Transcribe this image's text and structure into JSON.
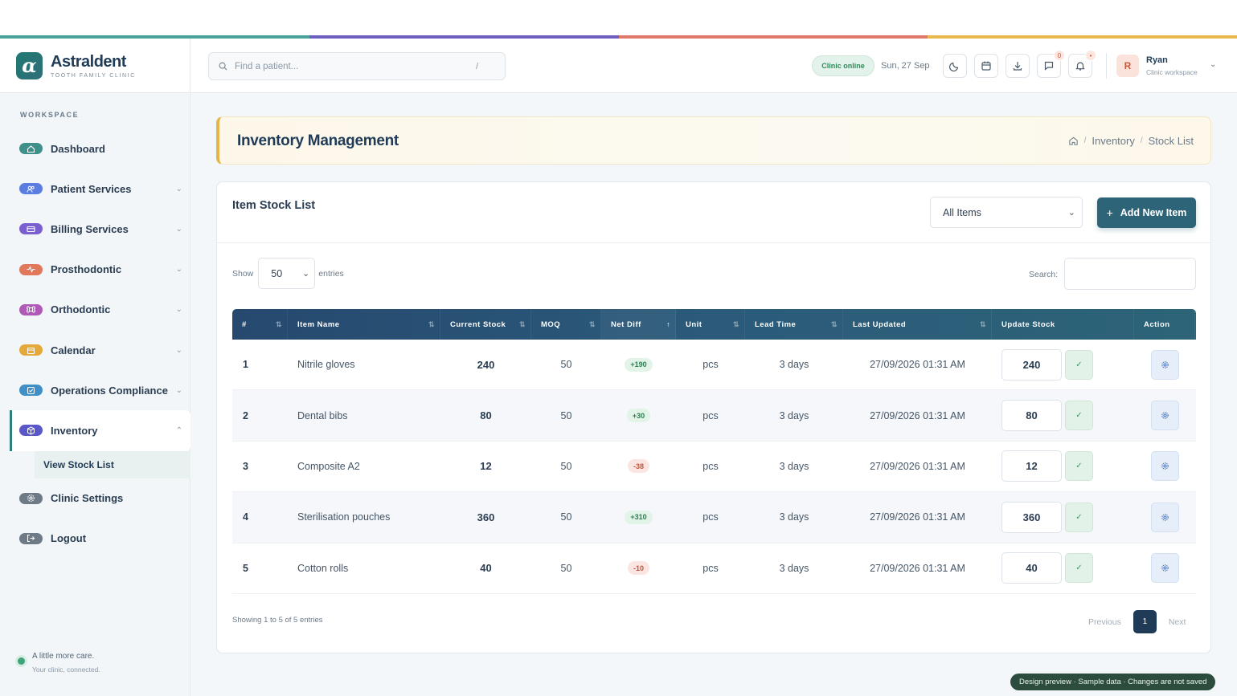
{
  "brand": {
    "name": "Astraldent",
    "tagline": "TOOTH FAMILY CLINIC",
    "logo_letter": "α"
  },
  "accent_colors": [
    "#4aa39a",
    "#6c5fc0",
    "#e0786a",
    "#e8b84a"
  ],
  "sidebar": {
    "section_label": "WORKSPACE",
    "items": [
      {
        "label": "Dashboard",
        "icon": "home-icon",
        "color": "#3f8f8a",
        "chevron": false
      },
      {
        "label": "Patient Services",
        "icon": "users-icon",
        "color": "#5b7de0",
        "chevron": true
      },
      {
        "label": "Billing Services",
        "icon": "card-icon",
        "color": "#7b5fd0",
        "chevron": true
      },
      {
        "label": "Prosthodontic",
        "icon": "pulse-icon",
        "color": "#e0785c",
        "chevron": true
      },
      {
        "label": "Orthodontic",
        "icon": "command-icon",
        "color": "#b05ab8",
        "chevron": true
      },
      {
        "label": "Calendar",
        "icon": "calendar-icon",
        "color": "#e3a93a",
        "chevron": true
      },
      {
        "label": "Operations Compliance",
        "icon": "checkbox-icon",
        "color": "#3f8fc8",
        "chevron": true
      },
      {
        "label": "Inventory",
        "icon": "box-icon",
        "color": "#5a58c8",
        "chevron": true,
        "expanded": true
      },
      {
        "label": "Clinic Settings",
        "icon": "gear-icon",
        "color": "#6e7a86",
        "chevron": false
      },
      {
        "label": "Logout",
        "icon": "logout-icon",
        "color": "#6e7a86",
        "chevron": false
      }
    ],
    "sub_item": "View Stock List",
    "footer": {
      "line1": "A little more care.",
      "line2": "Your clinic, connected."
    }
  },
  "header": {
    "search_placeholder": "Find a patient...",
    "search_shortcut": "/",
    "status": "Clinic online",
    "date": "Sun, 27 Sep",
    "chat_badge": "0",
    "notif_badge": "•",
    "user": {
      "initial": "R",
      "name": "Ryan",
      "role": "Clinic workspace"
    }
  },
  "page": {
    "title": "Inventory Management",
    "breadcrumbs": [
      "Inventory",
      "Stock List"
    ]
  },
  "card": {
    "title": "Item Stock List",
    "filter_value": "All Items",
    "add_button": "Add New Item",
    "show_label": "Show",
    "entries_value": "50",
    "entries_label": "entries",
    "search_label": "Search:",
    "columns": [
      "#",
      "Item Name",
      "Current Stock",
      "MOQ",
      "Net Diff",
      "Unit",
      "Lead Time",
      "Last Updated",
      "Update Stock",
      "Action"
    ],
    "rows": [
      {
        "num": "1",
        "name": "Nitrile gloves",
        "stock": "240",
        "moq": "50",
        "diff": "+190",
        "diff_positive": true,
        "unit": "pcs",
        "lead": "3 days",
        "updated": "27/09/2026 01:31 AM",
        "input": "240"
      },
      {
        "num": "2",
        "name": "Dental bibs",
        "stock": "80",
        "moq": "50",
        "diff": "+30",
        "diff_positive": true,
        "unit": "pcs",
        "lead": "3 days",
        "updated": "27/09/2026 01:31 AM",
        "input": "80"
      },
      {
        "num": "3",
        "name": "Composite A2",
        "stock": "12",
        "moq": "50",
        "diff": "-38",
        "diff_positive": false,
        "unit": "pcs",
        "lead": "3 days",
        "updated": "27/09/2026 01:31 AM",
        "input": "12"
      },
      {
        "num": "4",
        "name": "Sterilisation pouches",
        "stock": "360",
        "moq": "50",
        "diff": "+310",
        "diff_positive": true,
        "unit": "pcs",
        "lead": "3 days",
        "updated": "27/09/2026 01:31 AM",
        "input": "360"
      },
      {
        "num": "5",
        "name": "Cotton rolls",
        "stock": "40",
        "moq": "50",
        "diff": "-10",
        "diff_positive": false,
        "unit": "pcs",
        "lead": "3 days",
        "updated": "27/09/2026 01:31 AM",
        "input": "40"
      }
    ],
    "info": "Showing 1 to 5 of 5 entries",
    "pager": {
      "prev": "Previous",
      "current": "1",
      "next": "Next"
    }
  },
  "banner": "Design preview · Sample data · Changes are not saved"
}
